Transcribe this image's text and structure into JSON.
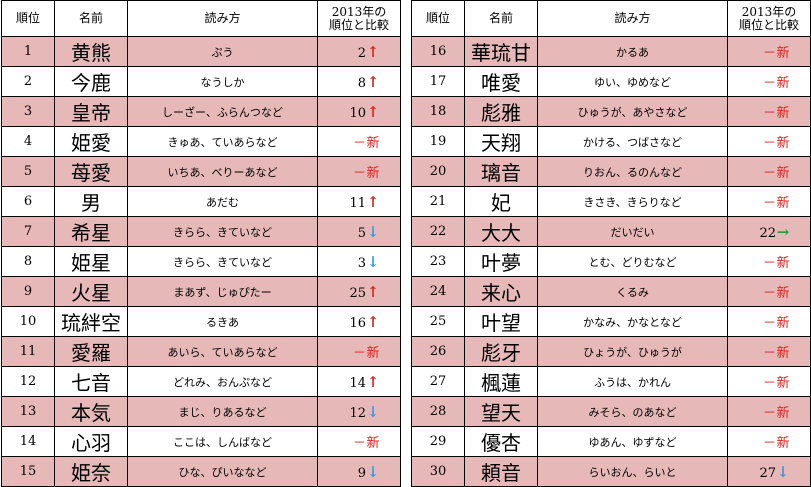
{
  "headers": {
    "rank": "順位",
    "name": "名前",
    "reading": "読み方",
    "compare_line1": "2013年の",
    "compare_line2": "順位と比較"
  },
  "left_rows": [
    {
      "rank": "1",
      "name": "黄熊",
      "reading": "ぷう",
      "prev": "2",
      "trend": "up"
    },
    {
      "rank": "2",
      "name": "今鹿",
      "reading": "なうしか",
      "prev": "8",
      "trend": "up"
    },
    {
      "rank": "3",
      "name": "皇帝",
      "reading": "しーざー、ふらんつなど",
      "prev": "10",
      "trend": "up"
    },
    {
      "rank": "4",
      "name": "姫愛",
      "reading": "きゅあ、ていあらなど",
      "prev": "－",
      "trend": "new"
    },
    {
      "rank": "5",
      "name": "苺愛",
      "reading": "いちあ、べりーあなど",
      "prev": "－",
      "trend": "new"
    },
    {
      "rank": "6",
      "name": "男",
      "reading": "あだむ",
      "prev": "11",
      "trend": "up"
    },
    {
      "rank": "7",
      "name": "希星",
      "reading": "きらら、きていなど",
      "prev": "5",
      "trend": "down"
    },
    {
      "rank": "8",
      "name": "姫星",
      "reading": "きらら、きていなど",
      "prev": "3",
      "trend": "down"
    },
    {
      "rank": "9",
      "name": "火星",
      "reading": "まあず、じゅぴたー",
      "prev": "25",
      "trend": "up"
    },
    {
      "rank": "10",
      "name": "琉絆空",
      "reading": "るきあ",
      "prev": "16",
      "trend": "up"
    },
    {
      "rank": "11",
      "name": "愛羅",
      "reading": "あいら、ていあらなど",
      "prev": "－",
      "trend": "new"
    },
    {
      "rank": "12",
      "name": "七音",
      "reading": "どれみ、おんぷなど",
      "prev": "14",
      "trend": "up"
    },
    {
      "rank": "13",
      "name": "本気",
      "reading": "まじ、りあるなど",
      "prev": "12",
      "trend": "down"
    },
    {
      "rank": "14",
      "name": "心羽",
      "reading": "ここは、しんばなど",
      "prev": "－",
      "trend": "new"
    },
    {
      "rank": "15",
      "name": "姫奈",
      "reading": "ひな、ぴいななど",
      "prev": "9",
      "trend": "down"
    }
  ],
  "right_rows": [
    {
      "rank": "16",
      "name": "華琉甘",
      "reading": "かるあ",
      "prev": "－",
      "trend": "new"
    },
    {
      "rank": "17",
      "name": "唯愛",
      "reading": "ゆい、ゆめなど",
      "prev": "－",
      "trend": "new"
    },
    {
      "rank": "18",
      "name": "彪雅",
      "reading": "ひゅうが、あやさなど",
      "prev": "－",
      "trend": "new"
    },
    {
      "rank": "19",
      "name": "天翔",
      "reading": "かける、つばさなど",
      "prev": "－",
      "trend": "new"
    },
    {
      "rank": "20",
      "name": "璃音",
      "reading": "りおん、るのんなど",
      "prev": "－",
      "trend": "new"
    },
    {
      "rank": "21",
      "name": "妃",
      "reading": "きさき、きらりなど",
      "prev": "－",
      "trend": "new"
    },
    {
      "rank": "22",
      "name": "大大",
      "reading": "だいだい",
      "prev": "22",
      "trend": "flat"
    },
    {
      "rank": "23",
      "name": "叶夢",
      "reading": "とむ、どりむなど",
      "prev": "－",
      "trend": "new"
    },
    {
      "rank": "24",
      "name": "来心",
      "reading": "くるみ",
      "prev": "－",
      "trend": "new"
    },
    {
      "rank": "25",
      "name": "叶望",
      "reading": "かなみ、かなとなど",
      "prev": "－",
      "trend": "new"
    },
    {
      "rank": "26",
      "name": "彪牙",
      "reading": "ひょうが、ひゅうが",
      "prev": "－",
      "trend": "new"
    },
    {
      "rank": "27",
      "name": "楓蓮",
      "reading": "ふうは、かれん",
      "prev": "－",
      "trend": "new"
    },
    {
      "rank": "28",
      "name": "望天",
      "reading": "みそら、のあなど",
      "prev": "－",
      "trend": "new"
    },
    {
      "rank": "29",
      "name": "優杏",
      "reading": "ゆあん、ゆずなど",
      "prev": "－",
      "trend": "new"
    },
    {
      "rank": "30",
      "name": "頼音",
      "reading": "らいおん、らいと",
      "prev": "27",
      "trend": "down"
    }
  ],
  "trend_symbols": {
    "up": "↑",
    "down": "↓",
    "flat": "→",
    "new": "新"
  },
  "colors": {
    "row_highlight": "#e6b8b8",
    "up": "#e0201b",
    "down": "#2f9be8",
    "flat": "#1aa33a",
    "new": "#e0201b"
  }
}
